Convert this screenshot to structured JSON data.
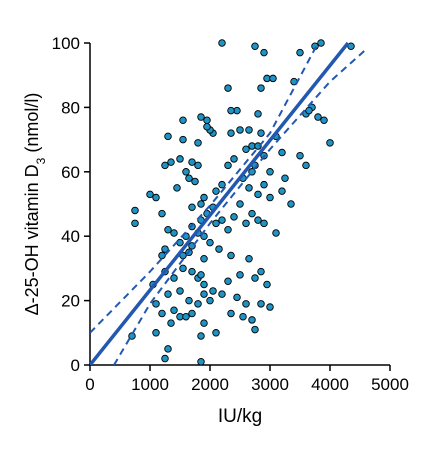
{
  "chart_data": {
    "type": "scatter",
    "x_label": "IU/kg",
    "y_label": {
      "text": "Δ-25-OH vitamin D",
      "subscript": "3",
      "suffix": " (nmol/l)"
    },
    "xlim": [
      0,
      5000
    ],
    "ylim": [
      0,
      100
    ],
    "xticks": [
      0,
      1000,
      2000,
      3000,
      4000,
      5000
    ],
    "yticks": [
      0,
      20,
      40,
      60,
      80,
      100
    ],
    "series": [
      {
        "color": "#1f93c4",
        "x": [
          2200,
          2750,
          2900,
          3500,
          3750,
          4350,
          3850,
          2950,
          3050,
          2850,
          2300,
          3400,
          1850,
          2450,
          2350,
          1950,
          1550,
          2800,
          3700,
          3800,
          3900,
          3600,
          3650,
          1300,
          1550,
          1800,
          2050,
          2350,
          2650,
          2850,
          3100,
          2000,
          1950,
          2500,
          1250,
          1350,
          1500,
          1700,
          1800,
          2600,
          2700,
          2800,
          2900,
          3200,
          3500,
          3600,
          4000,
          2400,
          2300,
          3000,
          3250,
          2750,
          1650,
          1750,
          1600,
          2550,
          2700,
          2900,
          3200,
          3350,
          2200,
          2100,
          1900,
          1450,
          1000,
          1100,
          750,
          750,
          1200,
          1700,
          1850,
          2050,
          2500,
          2800,
          2650,
          3000,
          1300,
          1400,
          1500,
          1600,
          1700,
          1800,
          1900,
          2000,
          2100,
          2200,
          2300,
          2400,
          2600,
          2700,
          2800,
          2900,
          3100,
          1550,
          1650,
          1700,
          1900,
          2150,
          2350,
          2650,
          1200,
          1250,
          1850,
          1950,
          1050,
          1250,
          1400,
          1550,
          1700,
          1800,
          1900,
          2050,
          2300,
          2500,
          2750,
          2850,
          2950,
          1300,
          1500,
          1650,
          2000,
          2200,
          2450,
          2600,
          2850,
          3000,
          1100,
          1200,
          1400,
          1500,
          1600,
          1700,
          1800,
          2350,
          2550,
          2700,
          1900,
          2100,
          2750,
          1350,
          1100,
          1300,
          1250,
          1850,
          1850,
          700,
          1850,
          1900
        ],
        "y": [
          100,
          99,
          97,
          97,
          99,
          99,
          100,
          89,
          89,
          86,
          86,
          88,
          77,
          79,
          79,
          76,
          76,
          78,
          80,
          77,
          76,
          78,
          79,
          71,
          70,
          69,
          72,
          72,
          73,
          72,
          71,
          73,
          74,
          73,
          62,
          63,
          64,
          63,
          62,
          67,
          68,
          68,
          65,
          66,
          65,
          62,
          69,
          64,
          62,
          60,
          58,
          62,
          58,
          57,
          60,
          58,
          60,
          56,
          54,
          50,
          56,
          54,
          52,
          55,
          53,
          52,
          48,
          44,
          47,
          49,
          50,
          49,
          50,
          53,
          55,
          52,
          42,
          41,
          38,
          40,
          43,
          41,
          40,
          38,
          44,
          45,
          42,
          46,
          44,
          47,
          45,
          44,
          41,
          34,
          35,
          37,
          33,
          36,
          34,
          33,
          34,
          36,
          45,
          47,
          25,
          29,
          27,
          30,
          29,
          27,
          25,
          23,
          26,
          28,
          27,
          29,
          25,
          22,
          23,
          20,
          20,
          22,
          21,
          19,
          19,
          18,
          19,
          16,
          17,
          15,
          15,
          16,
          19,
          16,
          15,
          14,
          13,
          10,
          11,
          13,
          10,
          5,
          2,
          1,
          9,
          9,
          28,
          22
        ]
      }
    ],
    "lines": [
      {
        "color": "#2358b0",
        "dashed": false,
        "x": [
          0,
          4300
        ],
        "y": [
          0,
          100
        ]
      },
      {
        "color": "#2358b0",
        "dashed": true,
        "x": [
          0,
          1000,
          2000,
          3000,
          3800
        ],
        "y": [
          10,
          29,
          49.5,
          72,
          100
        ]
      },
      {
        "color": "#2358b0",
        "dashed": true,
        "x": [
          400,
          1000,
          2000,
          3000,
          4000,
          4600
        ],
        "y": [
          0,
          19,
          44,
          67,
          88,
          98
        ]
      }
    ]
  }
}
